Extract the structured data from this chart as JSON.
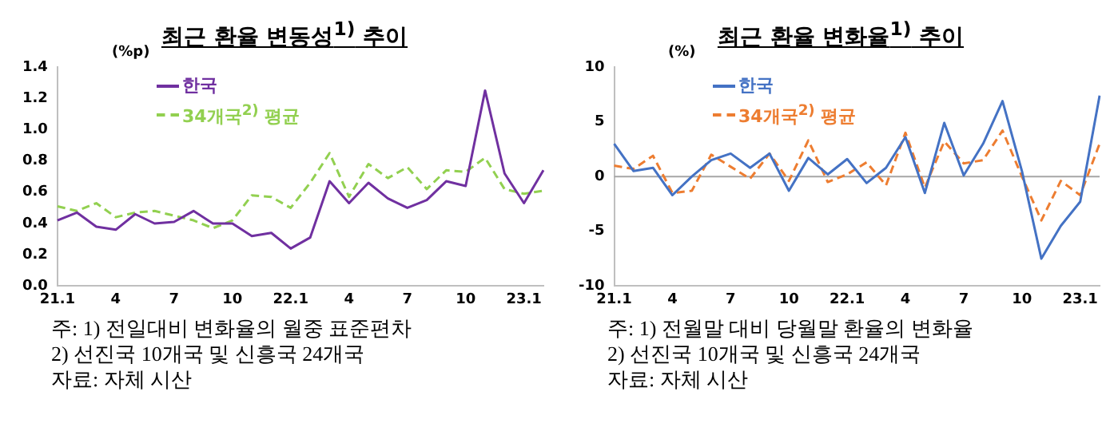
{
  "chart_data": [
    {
      "type": "line",
      "title": "최근 환율 변동성$^{1)}$ 추이",
      "ylabel": "(%p)",
      "categories": [
        "21.1",
        null,
        null,
        "4",
        null,
        null,
        "7",
        null,
        null,
        "10",
        null,
        null,
        "22.1",
        null,
        null,
        "4",
        null,
        null,
        "7",
        null,
        null,
        "10",
        null,
        null,
        "23.1",
        null
      ],
      "series": [
        {
          "name": "한국",
          "color": "#7030a0",
          "line_style": "solid",
          "values": [
            0.42,
            0.47,
            0.38,
            0.36,
            0.46,
            0.4,
            0.41,
            0.48,
            0.4,
            0.4,
            0.32,
            0.34,
            0.24,
            0.31,
            0.67,
            0.53,
            0.66,
            0.56,
            0.5,
            0.55,
            0.67,
            0.64,
            1.25,
            0.72,
            0.53,
            0.74
          ]
        },
        {
          "name": "34개국$^{2)}$ 평균",
          "color": "#92d050",
          "line_style": "dashed",
          "values": [
            0.51,
            0.48,
            0.53,
            0.44,
            0.47,
            0.48,
            0.45,
            0.42,
            0.37,
            0.42,
            0.58,
            0.57,
            0.5,
            0.66,
            0.85,
            0.57,
            0.78,
            0.69,
            0.76,
            0.62,
            0.74,
            0.73,
            0.82,
            0.62,
            0.59,
            0.61
          ]
        }
      ],
      "ylim": [
        0,
        1.4
      ],
      "yticks": [
        {
          "value": 0,
          "label": "0.0"
        },
        0.2,
        0.4,
        0.6,
        0.8,
        {
          "value": 1,
          "label": "1.0"
        },
        1.2,
        1.4
      ],
      "grid": false,
      "legend": "top left",
      "marker": "none",
      "annotations": [
        "주: 1) 전일대비 변화율의 월중 표준편차",
        "2) 선진국 10개국 및 신흥국 24개국",
        "자료: 자체 시산"
      ]
    },
    {
      "type": "line",
      "title": "최근 환율 변화율$^{1)}$ 추이",
      "ylabel": "(%)",
      "categories": [
        "21.1",
        null,
        null,
        "4",
        null,
        null,
        "7",
        null,
        null,
        "10",
        null,
        null,
        "22.1",
        null,
        null,
        "4",
        null,
        null,
        "7",
        null,
        null,
        "10",
        null,
        null,
        "23.1",
        null
      ],
      "series": [
        {
          "name": "한국",
          "color": "#4472c4",
          "line_style": "solid",
          "values": [
            3.0,
            0.5,
            0.8,
            -1.7,
            0,
            1.5,
            2.1,
            0.8,
            2.1,
            -1.3,
            1.7,
            0.2,
            1.6,
            -0.6,
            0.8,
            3.6,
            -1.5,
            4.9,
            0.1,
            3.0,
            6.9,
            0.5,
            -7.5,
            -4.5,
            -2.3,
            7.4
          ]
        },
        {
          "name": "34개국$^{2)}$ 평균",
          "color": "#ed7d31",
          "line_style": "dashed",
          "values": [
            1.0,
            0.7,
            1.9,
            -1.5,
            -1.3,
            2.0,
            0.9,
            -0.2,
            2.1,
            -0.4,
            3.3,
            -0.5,
            0.2,
            1.3,
            -0.8,
            4.0,
            -1.0,
            3.2,
            1.2,
            1.5,
            4.2,
            0.0,
            -4.0,
            -0.4,
            -1.7,
            3.0
          ]
        }
      ],
      "ylim": [
        -10,
        10
      ],
      "yticks": [
        -10,
        -5,
        0,
        5,
        10
      ],
      "ref_lines": [
        {
          "axis": "y",
          "value": 0,
          "color": "#a6a6a6"
        }
      ],
      "grid": false,
      "legend": "top left",
      "marker": "none",
      "annotations": [
        "주: 1) 전월말 대비 당월말 환율의 변화율",
        "2) 선진국 10개국 및 신흥국 24개국",
        "자료: 자체 시산"
      ]
    }
  ]
}
